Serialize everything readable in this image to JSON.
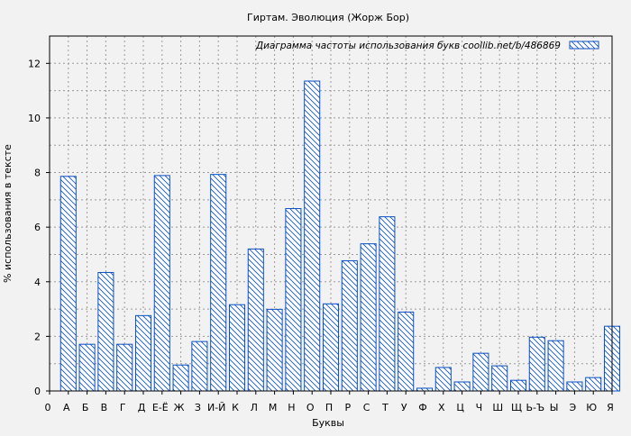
{
  "chart_data": {
    "type": "bar",
    "title": "Гиртам. Эволюция (Жорж Бор)",
    "xlabel": "Буквы",
    "ylabel": "% использования в тексте",
    "legend": {
      "label": "Диаграмма частоты использования букв  coollib.net/b/486869",
      "placement": "top-right"
    },
    "x_origin_label": "0",
    "categories": [
      "А",
      "Б",
      "В",
      "Г",
      "Д",
      "Е-Ё",
      "Ж",
      "З",
      "И-Й",
      "К",
      "Л",
      "М",
      "Н",
      "О",
      "П",
      "Р",
      "С",
      "Т",
      "У",
      "Ф",
      "Х",
      "Ц",
      "Ч",
      "Ш",
      "Щ",
      "Ь-Ъ",
      "Ы",
      "Э",
      "Ю",
      "Я"
    ],
    "values": [
      7.86,
      1.71,
      4.34,
      1.71,
      2.76,
      7.89,
      0.95,
      1.81,
      7.93,
      3.16,
      5.2,
      2.99,
      6.68,
      11.35,
      3.19,
      4.77,
      5.39,
      6.38,
      2.89,
      0.1,
      0.86,
      0.33,
      1.38,
      0.92,
      0.39,
      1.97,
      1.84,
      0.33,
      0.49,
      2.37
    ],
    "ylim": [
      0,
      13
    ],
    "yticks": [
      0,
      2,
      4,
      6,
      8,
      10,
      12
    ],
    "grid": true,
    "colors": {
      "bar_stroke": "#0a4fc4",
      "bar_fill": "#ffffff",
      "background": "#f2f2f2"
    }
  }
}
